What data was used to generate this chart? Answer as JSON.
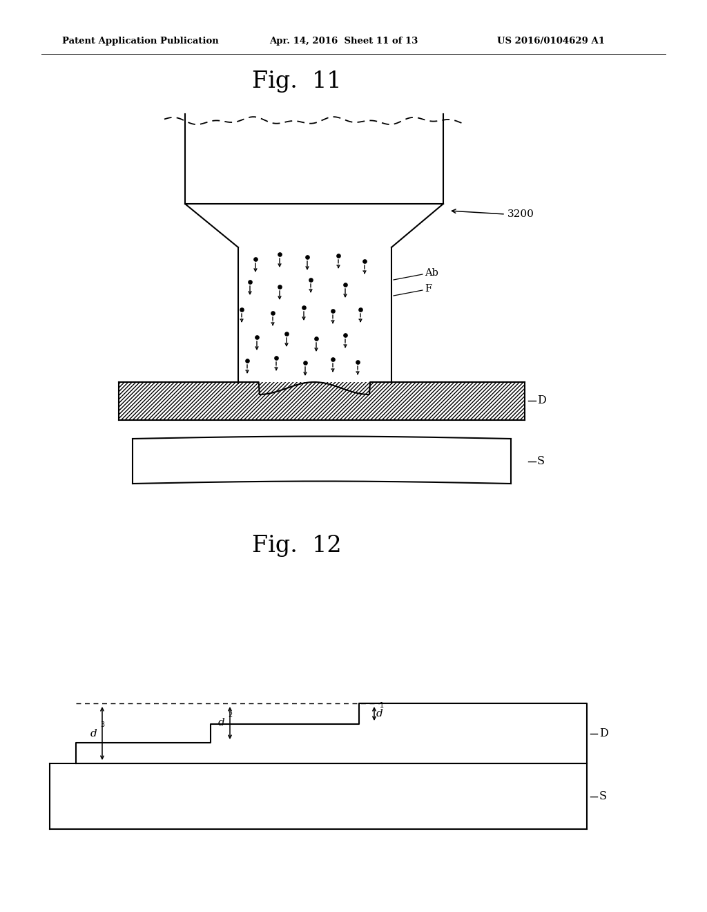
{
  "background_color": "#ffffff",
  "header_left": "Patent Application Publication",
  "header_mid": "Apr. 14, 2016  Sheet 11 of 13",
  "header_right": "US 2016/0104629 A1",
  "fig11_title": "Fig.  11",
  "fig12_title": "Fig.  12",
  "label_3200": "3200",
  "label_Ab": "Ab",
  "label_F": "F",
  "label_D1": "D",
  "label_S1": "S",
  "label_D2": "D",
  "label_S2": "S",
  "label_d1": "d",
  "label_d2": "d",
  "label_d3": "d",
  "sub_d1": "1",
  "sub_d2": "2",
  "sub_d3": "3",
  "line_color": "#000000",
  "text_color": "#000000"
}
